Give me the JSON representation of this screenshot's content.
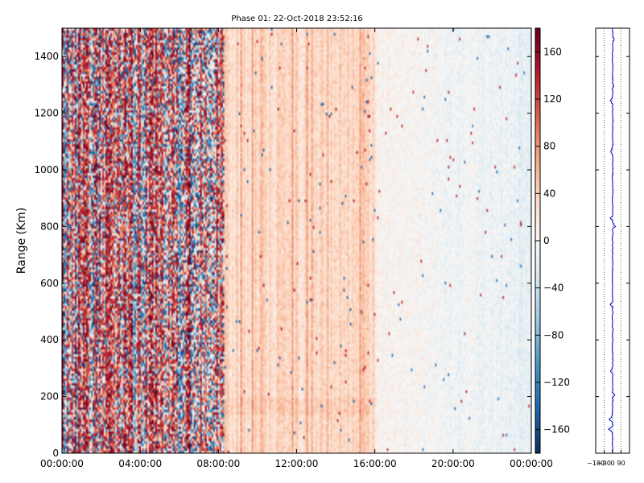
{
  "chart_data": [
    {
      "type": "heatmap",
      "title": "Phase 01: 22-Oct-2018 23:52:16",
      "ylabel": "Range (Km)",
      "xlabel": "",
      "x_ticks": [
        "00:00:00",
        "04:00:00",
        "08:00:00",
        "12:00:00",
        "16:00:00",
        "20:00:00",
        "00:00:00"
      ],
      "x_tick_hours": [
        0,
        4,
        8,
        12,
        16,
        20,
        24
      ],
      "xlim_hours": [
        0,
        24
      ],
      "y_ticks": [
        0,
        200,
        400,
        600,
        800,
        1000,
        1200,
        1400
      ],
      "ylim": [
        0,
        1500
      ],
      "colorbar": {
        "ticks": [
          160,
          120,
          80,
          40,
          0,
          -40,
          -80,
          -120,
          -160
        ],
        "tick_labels": [
          "160",
          "120",
          "80",
          "40",
          "0",
          "−40",
          "−80",
          "−120",
          "−160"
        ],
        "range": [
          -180,
          180
        ],
        "colormap": "RdBu_r",
        "low_color": "#08306b",
        "mid_color": "#f7f7f7",
        "high_color": "#67001f"
      },
      "regions": [
        {
          "hours": [
            0,
            8.3
          ],
          "description": "noisy, full range of phase values, red-dominant vertical banding"
        },
        {
          "hours": [
            8.3,
            16
          ],
          "description": "light red (about 20 to 60)"
        },
        {
          "hours": [
            16,
            24
          ],
          "description": "near zero to light blue (about -30 to 10)"
        }
      ]
    },
    {
      "type": "line",
      "xlim": [
        -180,
        180
      ],
      "x_ticks": [
        -180,
        -90,
        0,
        90
      ],
      "x_tick_labels": [
        "−180",
        "−90",
        "0",
        "90"
      ],
      "ylim": [
        0,
        1500
      ],
      "grid_x_dotted": [
        -90,
        0,
        90
      ],
      "description": "phase profile vs range, near 0 with spikes",
      "spikes": [
        {
          "range": 85,
          "phase": -40
        },
        {
          "range": 120,
          "phase": -35
        },
        {
          "range": 205,
          "phase": 20
        },
        {
          "range": 290,
          "phase": -15
        },
        {
          "range": 525,
          "phase": -20
        },
        {
          "range": 800,
          "phase": 25
        },
        {
          "range": 830,
          "phase": -15
        },
        {
          "range": 1065,
          "phase": -20
        },
        {
          "range": 1245,
          "phase": -25
        },
        {
          "range": 1295,
          "phase": 10
        },
        {
          "range": 1460,
          "phase": 20
        }
      ]
    }
  ]
}
